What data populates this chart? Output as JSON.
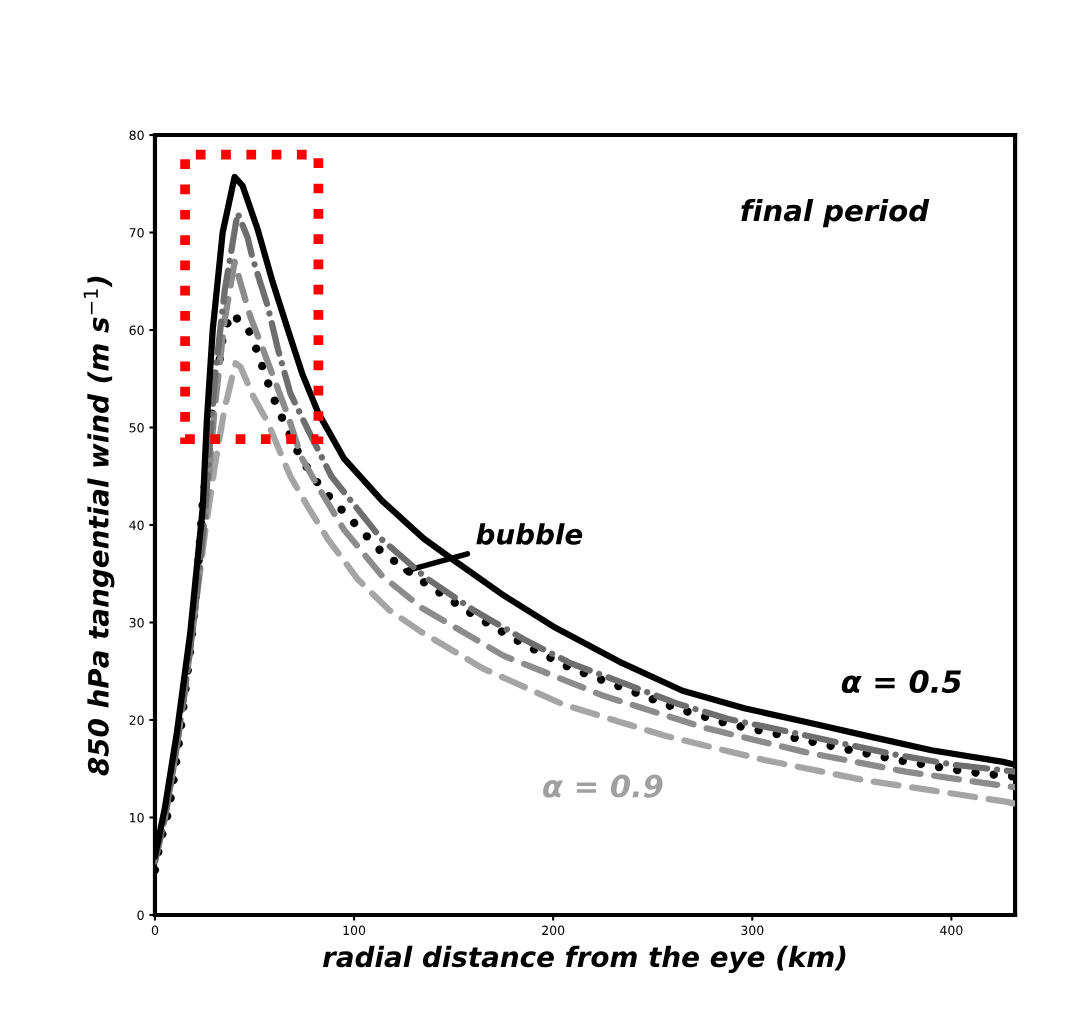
{
  "chart_data": {
    "type": "line",
    "xlabel": "radial distance from the eye (km)",
    "ylabel": "850 hPa tangential wind (m s$^{−1}$)",
    "xlim": [
      0,
      432
    ],
    "ylim": [
      0,
      80
    ],
    "xticks": [
      0,
      100,
      200,
      300,
      400
    ],
    "yticks": [
      0,
      10,
      20,
      30,
      40,
      50,
      60,
      70,
      80
    ],
    "grid": false,
    "legend": false,
    "marker": "none",
    "series": [
      {
        "color": "#000000",
        "line_style": "solid",
        "x": [
          0,
          5,
          11,
          17.7,
          24,
          26,
          29,
          34,
          40,
          44,
          51.6,
          59,
          66.8,
          74,
          82,
          95,
          114,
          135,
          150,
          175,
          200,
          235,
          265,
          296,
          327,
          357,
          390,
          426,
          432
        ],
        "values": [
          6,
          11,
          18.7,
          28.9,
          41.8,
          50.5,
          60,
          70,
          75.7,
          74.8,
          70.3,
          65,
          60,
          55.5,
          51.5,
          46.8,
          42.5,
          38.6,
          36.4,
          32.8,
          29.6,
          25.8,
          23.0,
          21.2,
          19.8,
          18.4,
          16.9,
          15.7,
          15.4
        ]
      },
      {
        "color": "#6e6e6e",
        "line_style": "dashdot",
        "x": [
          0,
          5,
          10,
          15,
          20,
          25,
          30,
          35,
          41.5,
          46.5,
          49,
          56.7,
          61.8,
          68,
          77,
          88.6,
          114,
          136,
          160.5,
          185,
          209,
          235,
          262,
          288,
          316,
          345,
          373,
          401.5,
          432
        ],
        "values": [
          5.5,
          10,
          16,
          23,
          31,
          41,
          55,
          64,
          72,
          69.5,
          67.4,
          62.4,
          58,
          53.5,
          49.7,
          45,
          38.5,
          34.6,
          31.2,
          28.3,
          25.8,
          23.8,
          21.7,
          20.1,
          18.9,
          17.6,
          16.4,
          15.4,
          14.7
        ]
      },
      {
        "color": "#8c8c8c",
        "line_style": "dashed",
        "x": [
          0,
          5,
          10,
          15,
          20,
          25,
          30,
          35,
          40,
          43,
          48,
          53,
          60,
          67,
          73.4,
          82,
          95,
          114,
          134,
          175,
          225,
          276,
          326.6,
          377,
          428,
          432
        ],
        "values": [
          5.5,
          10,
          16,
          23,
          31,
          40,
          52,
          61,
          67,
          64.8,
          61.3,
          58.7,
          54.9,
          51.1,
          47,
          43.9,
          39.5,
          34.8,
          31.5,
          26.6,
          22.5,
          19.2,
          16.7,
          14.7,
          13.2,
          13.1
        ]
      },
      {
        "color": "#000000",
        "line_style": "dotted",
        "x": [
          0,
          2.5,
          6,
          8.6,
          12.7,
          17.7,
          19.4,
          21.8,
          23.8,
          27,
          29.5,
          32,
          34,
          38,
          46.5,
          51.6,
          56,
          61,
          66,
          72,
          79,
          87.6,
          114,
          136,
          160.5,
          185,
          209,
          235,
          262,
          288,
          316,
          345,
          373,
          401.5,
          416,
          432
        ],
        "values": [
          4.6,
          7.4,
          10,
          12.8,
          18.7,
          27.2,
          30.3,
          36,
          41.8,
          47.7,
          53.5,
          56.2,
          59.2,
          61.7,
          60.3,
          57.7,
          55,
          52.3,
          50,
          47.4,
          45,
          42.9,
          37.2,
          34,
          30.7,
          27.8,
          25.3,
          23.3,
          21.2,
          19.6,
          18.4,
          17.1,
          15.9,
          14.9,
          14.5,
          14.2
        ]
      },
      {
        "color": "#a5a5a5",
        "line_style": "dashed",
        "x": [
          0,
          5,
          10,
          15,
          20,
          25,
          30,
          35,
          40.5,
          43,
          49.6,
          56.7,
          63,
          68,
          77,
          87,
          102,
          117.5,
          134,
          164.6,
          205,
          255.7,
          306,
          357,
          428,
          432
        ],
        "values": [
          5.5,
          10,
          16,
          23,
          31,
          39,
          46,
          52,
          56.6,
          56.2,
          53.1,
          50.5,
          47.4,
          45,
          41.8,
          38.5,
          34.4,
          31.3,
          29,
          25.3,
          21.6,
          18.4,
          15.9,
          13.8,
          11.6,
          11.4
        ]
      }
    ],
    "annotations": [
      "final period",
      {
        "text": "bubble",
        "x": 126,
        "y": 35.3
      },
      {
        "text": "α = 0.5",
        "x": 375,
        "y": 17.4
      },
      {
        "text": "α = 0.9",
        "x": 225,
        "y": 19.5
      }
    ]
  }
}
